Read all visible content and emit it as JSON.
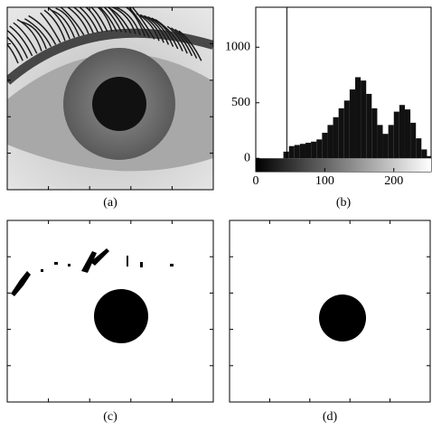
{
  "figure": {
    "labels": [
      "(a)",
      "(b)",
      "(c)",
      "(d)"
    ]
  },
  "chart_data": {
    "type": "histogram",
    "bins": [
      0,
      8,
      16,
      24,
      32,
      40,
      48,
      56,
      64,
      72,
      80,
      88,
      96,
      104,
      112,
      120,
      128,
      136,
      144,
      152,
      160,
      168,
      176,
      184,
      192,
      200,
      208,
      216,
      224,
      232,
      240,
      248,
      256
    ],
    "values": [
      0,
      0,
      0,
      0,
      0,
      60,
      110,
      120,
      130,
      140,
      150,
      170,
      230,
      300,
      370,
      450,
      520,
      620,
      730,
      700,
      580,
      450,
      300,
      220,
      300,
      420,
      480,
      440,
      320,
      180,
      80,
      20
    ],
    "color": "#111111",
    "vline": 45,
    "xlim": [
      0,
      254
    ],
    "xticks": [
      0,
      100,
      200
    ],
    "ylim": [
      -120,
      1360
    ],
    "yticks": [
      0,
      500,
      1000
    ]
  }
}
